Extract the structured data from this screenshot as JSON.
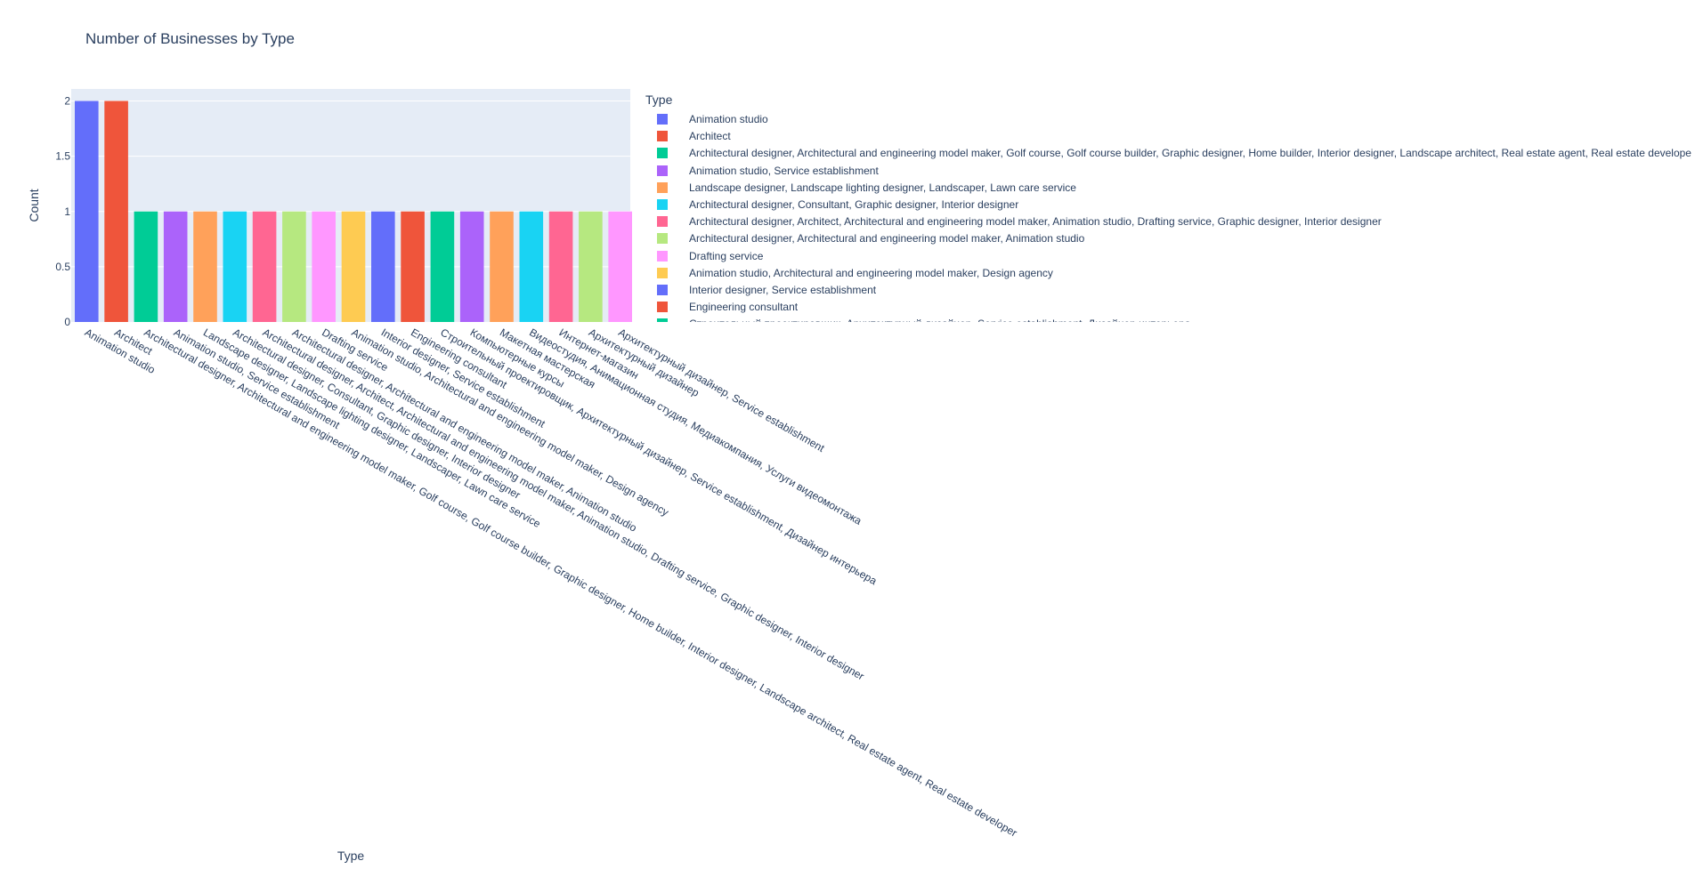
{
  "chart_data": {
    "type": "bar",
    "title": "Number of Businesses by Type",
    "xlabel": "Type",
    "ylabel": "Count",
    "ylim": [
      0,
      2
    ],
    "yticks": [
      0,
      0.5,
      1,
      1.5,
      2
    ],
    "ytick_labels": [
      "0",
      "0.5",
      "1",
      "1.5",
      "2"
    ],
    "grid": true,
    "legend_title": "Type",
    "legend_placement": "right",
    "plot_background": "#e5ecf6",
    "palette": [
      "#636efa",
      "#ef553b",
      "#00cc96",
      "#ab63fa",
      "#ffa15a",
      "#19d3f3",
      "#ff6692",
      "#b6e880",
      "#ff97ff",
      "#fecb52"
    ],
    "categories": [
      "Animation studio",
      "Architect",
      "Architectural designer, Architectural and engineering model maker, Golf course, Golf course builder, Graphic designer, Home builder, Interior designer, Landscape architect, Real estate agent, Real estate developer",
      "Animation studio, Service establishment",
      "Landscape designer, Landscape lighting designer, Landscaper, Lawn care service",
      "Architectural designer, Consultant, Graphic designer, Interior designer",
      "Architectural designer, Architect, Architectural and engineering model maker, Animation studio, Drafting service, Graphic designer, Interior designer",
      "Architectural designer, Architectural and engineering model maker, Animation studio",
      "Drafting service",
      "Animation studio, Architectural and engineering model maker, Design agency",
      "Interior designer, Service establishment",
      "Engineering consultant",
      "Строительный проектировщик, Архитектурный дизайнер, Service establishment, Дизайнер интерьера",
      "Компьютерные курсы",
      "Макетная мастерская",
      "Видеостудия, Анимационная студия, Медиакомпания, Услуги видеомонтажа",
      "Интернет-магазин",
      "Архитектурный дизайнер",
      "Архитектурный дизайнер, Service establishment"
    ],
    "values": [
      2,
      2,
      1,
      1,
      1,
      1,
      1,
      1,
      1,
      1,
      1,
      1,
      1,
      1,
      1,
      1,
      1,
      1,
      1
    ],
    "legend_visible_entries": [
      "Animation studio",
      "Architect",
      "Architectural designer, Architectural and engineering model maker, Golf course, Golf course builder, Graphic designer, Home builder, Interior designer, Landscape architect, Real estate agent, Real estate developer",
      "Animation studio, Service establishment",
      "Landscape designer, Landscape lighting designer, Landscaper, Lawn care service",
      "Architectural designer, Consultant, Graphic designer, Interior designer",
      "Architectural designer, Architect, Architectural and engineering model maker, Animation studio, Drafting service, Graphic designer, Interior designer",
      "Architectural designer, Architectural and engineering model maker, Animation studio",
      "Drafting service",
      "Animation studio, Architectural and engineering model maker, Design agency",
      "Interior designer, Service establishment",
      "Engineering consultant",
      "Строительный проектировщик, Архитектурный дизайнер, Service establishment, Дизайнер интерьера"
    ]
  }
}
